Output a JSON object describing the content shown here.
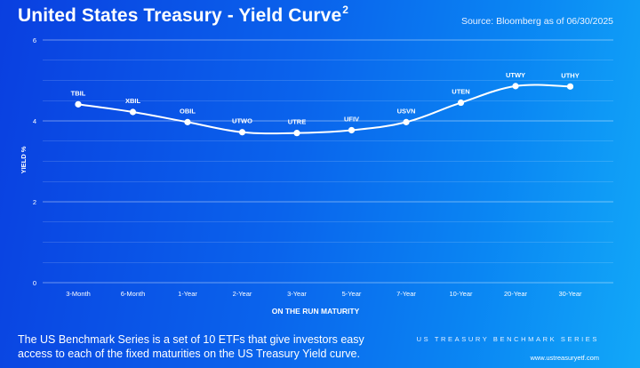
{
  "header": {
    "title": "United States Treasury - Yield Curve",
    "title_superscript": "2",
    "source": "Source: Bloomberg as of 06/30/2025"
  },
  "chart_data": {
    "type": "line",
    "title": "United States Treasury - Yield Curve",
    "xlabel": "ON THE RUN MATURITY",
    "ylabel": "YIELD %",
    "categories": [
      "3-Month",
      "6-Month",
      "1-Year",
      "2-Year",
      "3-Year",
      "5-Year",
      "7-Year",
      "10-Year",
      "20-Year",
      "30-Year"
    ],
    "point_labels": [
      "TBIL",
      "XBIL",
      "OBIL",
      "UTWO",
      "UTRE",
      "UFIV",
      "USVN",
      "UTEN",
      "UTWY",
      "UTHY"
    ],
    "values": [
      4.41,
      4.22,
      3.97,
      3.72,
      3.7,
      3.77,
      3.97,
      4.45,
      4.86,
      4.85
    ],
    "ylim": [
      0,
      6
    ],
    "yticks": [
      0,
      2,
      4,
      6
    ],
    "grid": true
  },
  "footer": {
    "description": "The US Benchmark Series is a set of 10 ETFs that give investors easy access to each of the fixed maturities on the US Treasury Yield curve.",
    "series_label": "US TREASURY BENCHMARK SERIES",
    "url": "www.ustreasuryetf.com"
  },
  "colors": {
    "background_start": "#0a3fe0",
    "background_end": "#12a8f8",
    "line": "#ffffff",
    "grid": "#ffffff"
  }
}
